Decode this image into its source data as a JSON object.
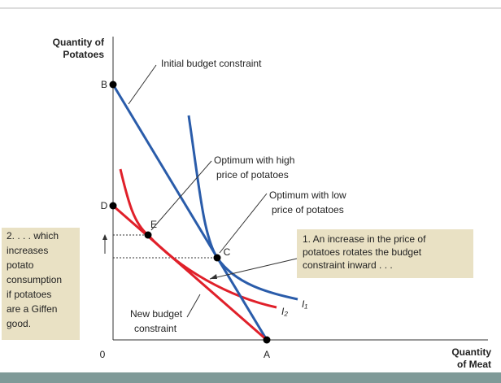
{
  "axes": {
    "y_label": [
      "Quantity of",
      "Potatoes"
    ],
    "x_label": [
      "Quantity",
      "of Meat"
    ],
    "origin": "0"
  },
  "points": {
    "A": "A",
    "B": "B",
    "C": "C",
    "D": "D",
    "E": "E"
  },
  "curves": {
    "i1": "I₁",
    "i2": "I₂"
  },
  "labels": {
    "initial": "Initial budget constraint",
    "high": [
      "Optimum with high",
      "price of potatoes"
    ],
    "low": [
      "Optimum with low",
      "price of potatoes"
    ],
    "new": [
      "New budget",
      "constraint"
    ]
  },
  "notes": {
    "one": [
      "1. An increase in the price of",
      "potatoes rotates the budget",
      "constraint inward . . ."
    ],
    "two": [
      "2. . . . which",
      "increases",
      "potato",
      "consumption",
      "if potatoes",
      "are a Giffen",
      "good."
    ]
  }
}
